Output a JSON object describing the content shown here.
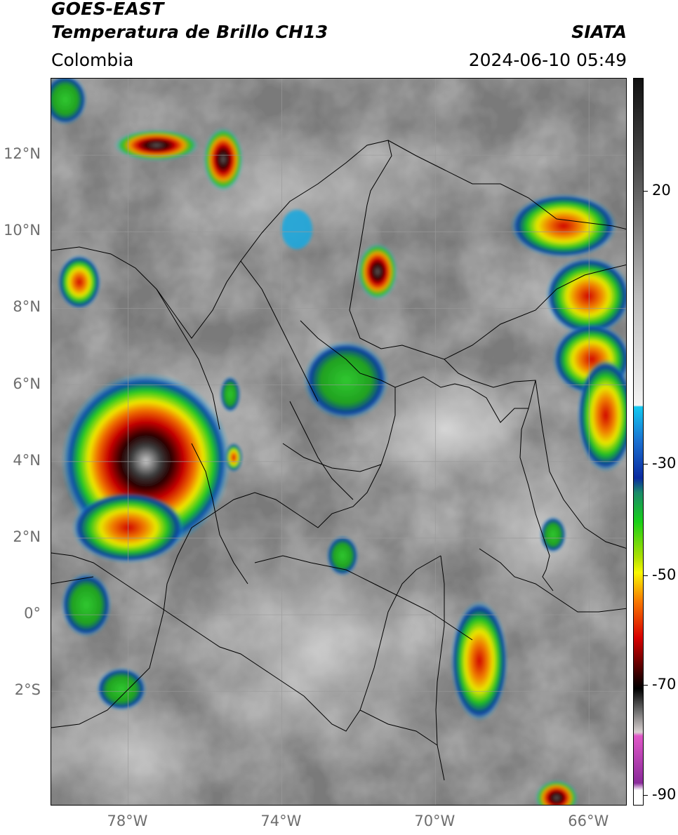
{
  "header": {
    "title_line1": "GOES-EAST",
    "title_line2": "Temperatura de Brillo CH13",
    "brand": "SIATA",
    "region": "Colombia",
    "datetime": "2024-06-10 05:49"
  },
  "map": {
    "extent": {
      "lon_min": -80,
      "lon_max": -65,
      "lat_min": -5,
      "lat_max": 14
    },
    "lat_ticks": [
      {
        "value": 12,
        "label": "12°N"
      },
      {
        "value": 10,
        "label": "10°N"
      },
      {
        "value": 8,
        "label": "8°N"
      },
      {
        "value": 6,
        "label": "6°N"
      },
      {
        "value": 4,
        "label": "4°N"
      },
      {
        "value": 2,
        "label": "2°N"
      },
      {
        "value": 0,
        "label": "0°"
      },
      {
        "value": -2,
        "label": "2°S"
      }
    ],
    "lon_ticks": [
      {
        "value": -78,
        "label": "78°W"
      },
      {
        "value": -74,
        "label": "74°W"
      },
      {
        "value": -70,
        "label": "70°W"
      },
      {
        "value": -66,
        "label": "66°W"
      }
    ],
    "grid": true,
    "background_color": "#7a7a7a"
  },
  "colorbar": {
    "ticks": [
      {
        "value": 20,
        "label": "20"
      },
      {
        "value": -30,
        "label": "-30"
      },
      {
        "value": -50,
        "label": "-50"
      },
      {
        "value": -70,
        "label": "-70"
      },
      {
        "value": -90,
        "label": "-90"
      }
    ],
    "colors": {
      "warm_gray_top": "#111111",
      "gray_mid": "#bcbcbc",
      "cyan": "#13c8f0",
      "blue": "#0a2aa0",
      "green": "#18d018",
      "yellow": "#f8f800",
      "orange": "#f87800",
      "red": "#d80000",
      "dark": "#1a0000",
      "pink": "#e058c8",
      "purple": "#8a2a9a"
    }
  }
}
